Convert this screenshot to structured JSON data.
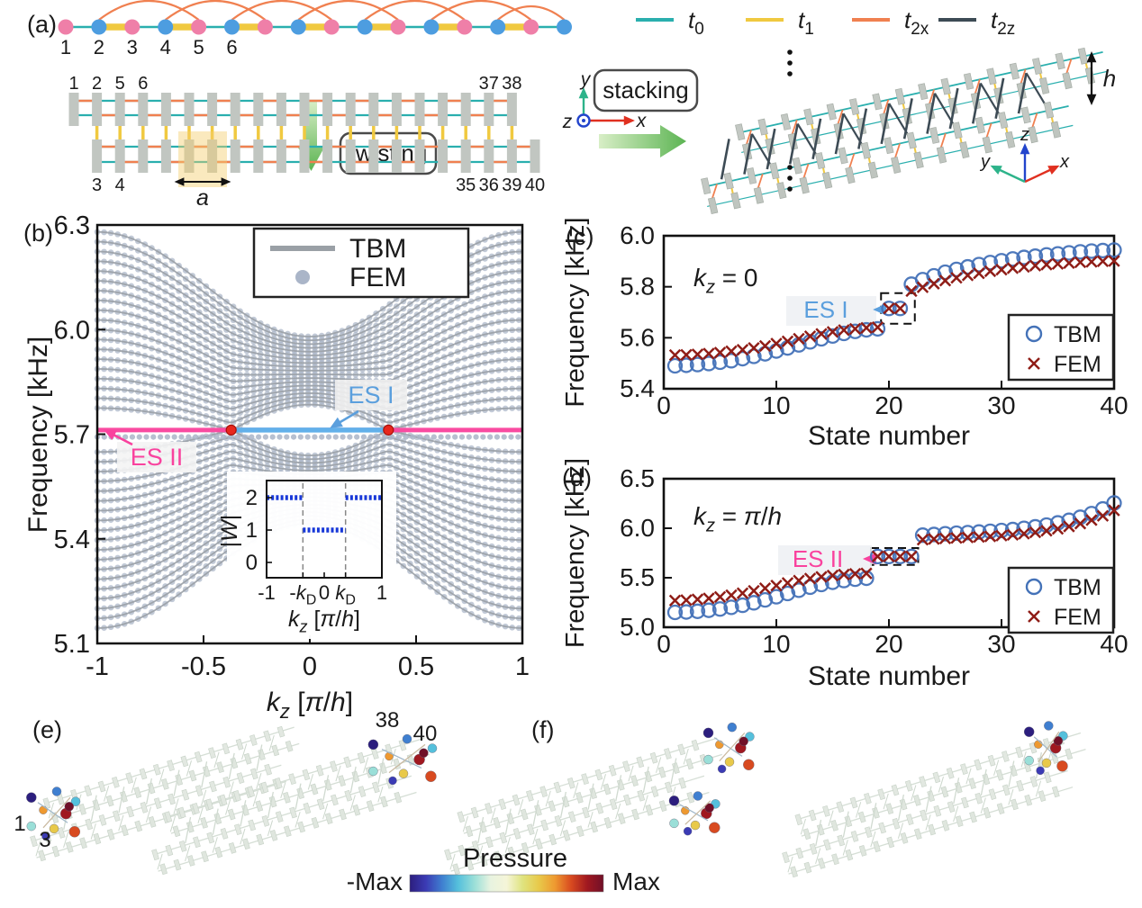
{
  "figure_labels": {
    "a": "(a)",
    "b": "(b)",
    "c": "(c)",
    "d": "(d)",
    "e": "(e)",
    "f": "(f)"
  },
  "panel_a": {
    "chain": {
      "n_sites": 16,
      "site_labels": [
        "1",
        "2",
        "3",
        "4",
        "5",
        "6"
      ],
      "site_color_a": "#ef7fa8",
      "site_color_b": "#4d9de0",
      "bond_color_t0": "#2aafae",
      "bond_color_t1": "#f0c940",
      "arc_color": "#f08050"
    },
    "twisting_label": "twisting",
    "stacking_label": "stacking",
    "lattice": {
      "n_cols": 20,
      "top_left_labels": [
        "1",
        "2",
        "5",
        "6"
      ],
      "top_right_labels": [
        "37",
        "38"
      ],
      "bottom_left_labels": [
        "3",
        "4"
      ],
      "bottom_right_labels": [
        "35",
        "36",
        "39",
        "40"
      ],
      "unit_cell_label": "a",
      "bar_color": "#c1c6c1"
    },
    "legend": [
      {
        "pieces": [
          [
            "t",
            1,
            0
          ],
          [
            "0",
            0,
            1
          ]
        ],
        "color": "#2aafae"
      },
      {
        "pieces": [
          [
            "t",
            1,
            0
          ],
          [
            "1",
            0,
            1
          ]
        ],
        "color": "#f0c940"
      },
      {
        "pieces": [
          [
            "t",
            1,
            0
          ],
          [
            "2x",
            0,
            1
          ]
        ],
        "color": "#f08050"
      },
      {
        "pieces": [
          [
            "t",
            1,
            0
          ],
          [
            "2z",
            0,
            1
          ]
        ],
        "color": "#3d4b55"
      }
    ],
    "axes2d": {
      "up": "y",
      "right": "x",
      "out": "z",
      "up_color": "#2db38a",
      "right_color": "#e03020",
      "out_color": "#2244cc"
    },
    "axes3d": {
      "up": "z",
      "right": "x",
      "left": "y",
      "up_color": "#2244cc",
      "right_color": "#e03020",
      "left_color": "#2db38a"
    },
    "height_label": "h"
  },
  "chart_data": [
    {
      "id": "b",
      "type": "line",
      "xlabel": "k_z [pi/h]",
      "xlabel_pieces": [
        [
          "k",
          1,
          0
        ],
        [
          "z",
          1,
          1
        ],
        [
          "  [",
          0,
          0
        ],
        [
          "π",
          1,
          0
        ],
        [
          "/",
          0,
          0
        ],
        [
          "h",
          1,
          0
        ],
        [
          "]",
          0,
          0
        ]
      ],
      "ylabel": "Frequency [kHz]",
      "xlim": [
        -1,
        1
      ],
      "ylim": [
        5.1,
        6.3
      ],
      "xticks": [
        -1,
        -0.5,
        0,
        0.5,
        1
      ],
      "yticks": [
        5.1,
        5.4,
        5.7,
        6.0,
        6.3
      ],
      "legend": [
        {
          "label": "TBM",
          "marker": "line",
          "color": "#9aa0a6"
        },
        {
          "label": "FEM",
          "marker": "dot",
          "color": "#aab5c8"
        }
      ],
      "bands": {
        "n_per_group": 19,
        "dirac_k": 0.37,
        "upper_envelope": {
          "top_zone_edge": 6.28,
          "top_center": 5.98,
          "bottom_center": 5.785,
          "bottom_dirac": 5.712,
          "bottom_zone_edge": 5.775
        },
        "lower_envelope": {
          "bottom_zone_edge": 5.144,
          "bottom_center": 5.444,
          "top_center": 5.639,
          "top_dirac": 5.712,
          "top_zone_edge": 5.649
        }
      },
      "edge_states": [
        {
          "label": "ES I",
          "f": 5.712,
          "k_range": [
            -0.37,
            0.37
          ],
          "color": "#62b0ea",
          "label_color": "#5b9fdd"
        },
        {
          "label": "ES II",
          "f": 5.712,
          "k_range": [
            -1,
            1
          ],
          "color": "#f94ba1",
          "label_color": "#f9429e"
        }
      ],
      "fem_edge_row_f": 5.692,
      "dirac_points": {
        "k": [
          -0.37,
          0.37
        ],
        "f": 5.712,
        "color": "#e8281e"
      }
    },
    {
      "id": "b_inset",
      "type": "line",
      "xlabel_pieces": [
        [
          "k",
          1,
          0
        ],
        [
          "z",
          1,
          1
        ],
        [
          "  [",
          0,
          0
        ],
        [
          "π",
          1,
          0
        ],
        [
          "/",
          0,
          0
        ],
        [
          "h",
          1,
          0
        ],
        [
          "]",
          0,
          0
        ]
      ],
      "ylabel_pieces": [
        [
          "|",
          0,
          0
        ],
        [
          "W",
          1,
          0
        ],
        [
          "|",
          0,
          0
        ]
      ],
      "xlim": [
        -1,
        1
      ],
      "ylim": [
        0,
        2.3
      ],
      "yticks": [
        0,
        1,
        2
      ],
      "xtick_positions": [
        -1,
        -0.37,
        0,
        0.37,
        1
      ],
      "xtick_pieces": [
        [
          [
            "-1",
            0,
            0
          ]
        ],
        [
          [
            "-",
            0,
            0
          ],
          [
            "k",
            1,
            0
          ],
          [
            "D",
            0,
            1
          ]
        ],
        [
          [
            "0",
            0,
            0
          ]
        ],
        [
          [
            "k",
            1,
            0
          ],
          [
            "D",
            0,
            1
          ]
        ],
        [
          [
            "1",
            0,
            0
          ]
        ]
      ],
      "segments": [
        {
          "x0": -1,
          "x1": -0.37,
          "w": 2
        },
        {
          "x0": -0.37,
          "x1": 0.37,
          "w": 1
        },
        {
          "x0": 0.37,
          "x1": 1,
          "w": 2
        }
      ],
      "dashed_x": [
        -0.37,
        0.37
      ],
      "color": "#1838d8"
    },
    {
      "id": "c",
      "type": "scatter",
      "annotation": "k_z = 0",
      "annotation_pieces": [
        [
          "k",
          1,
          0
        ],
        [
          "z",
          1,
          1
        ],
        [
          " = 0",
          0,
          0
        ]
      ],
      "xlabel": "State number",
      "ylabel": "Frequency [kHz]",
      "xlim": [
        0,
        40
      ],
      "ylim": [
        5.4,
        6.0
      ],
      "xticks": [
        0,
        10,
        20,
        30,
        40
      ],
      "yticks": [
        5.4,
        5.6,
        5.8,
        6.0
      ],
      "x_start": 1,
      "highlight": {
        "label": "ES I",
        "color": "#5b9fdd",
        "box_states": [
          19.3,
          22.3
        ],
        "box_freq": [
          5.655,
          5.775
        ]
      },
      "series": [
        {
          "name": "TBM",
          "marker": "circle",
          "color": "#4472b8",
          "y": [
            5.49,
            5.492,
            5.495,
            5.499,
            5.504,
            5.51,
            5.518,
            5.527,
            5.537,
            5.548,
            5.56,
            5.572,
            5.584,
            5.596,
            5.607,
            5.617,
            5.625,
            5.631,
            5.635,
            5.715,
            5.715,
            5.81,
            5.828,
            5.843,
            5.857,
            5.868,
            5.878,
            5.887,
            5.895,
            5.902,
            5.909,
            5.915,
            5.92,
            5.925,
            5.929,
            5.933,
            5.937,
            5.94,
            5.942,
            5.944
          ]
        },
        {
          "name": "FEM",
          "marker": "cross",
          "color": "#8f1d17",
          "y": [
            5.532,
            5.533,
            5.535,
            5.538,
            5.542,
            5.547,
            5.553,
            5.56,
            5.568,
            5.577,
            5.586,
            5.596,
            5.606,
            5.615,
            5.623,
            5.63,
            5.635,
            5.639,
            5.641,
            5.715,
            5.715,
            5.783,
            5.798,
            5.812,
            5.824,
            5.835,
            5.845,
            5.853,
            5.861,
            5.867,
            5.873,
            5.878,
            5.883,
            5.887,
            5.89,
            5.893,
            5.896,
            5.898,
            5.9,
            5.901
          ]
        }
      ]
    },
    {
      "id": "d",
      "type": "scatter",
      "annotation": "k_z = pi/h",
      "annotation_pieces": [
        [
          "k",
          1,
          0
        ],
        [
          "z",
          1,
          1
        ],
        [
          " = ",
          0,
          0
        ],
        [
          "π",
          1,
          0
        ],
        [
          "/",
          0,
          0
        ],
        [
          "h",
          1,
          0
        ]
      ],
      "xlabel": "State number",
      "ylabel": "Frequency [kHz]",
      "xlim": [
        0,
        40
      ],
      "ylim": [
        5.0,
        6.5
      ],
      "xticks": [
        0,
        10,
        20,
        30,
        40
      ],
      "yticks": [
        5.0,
        5.5,
        6.0,
        6.5
      ],
      "x_start": 1,
      "highlight": {
        "label": "ES II",
        "color": "#f9429e",
        "box_states": [
          18.4,
          22.6
        ],
        "box_freq": [
          5.63,
          5.8
        ]
      },
      "series": [
        {
          "name": "TBM",
          "marker": "circle",
          "color": "#4472b8",
          "y": [
            5.15,
            5.154,
            5.161,
            5.171,
            5.184,
            5.201,
            5.222,
            5.247,
            5.276,
            5.308,
            5.341,
            5.374,
            5.405,
            5.432,
            5.454,
            5.472,
            5.485,
            5.495,
            5.715,
            5.715,
            5.715,
            5.715,
            5.93,
            5.937,
            5.944,
            5.95,
            5.956,
            5.962,
            5.969,
            5.977,
            5.987,
            5.999,
            6.014,
            6.032,
            6.054,
            6.08,
            6.111,
            6.148,
            6.195,
            6.255
          ]
        },
        {
          "name": "FEM",
          "marker": "cross",
          "color": "#8f1d17",
          "y": [
            5.27,
            5.274,
            5.281,
            5.292,
            5.306,
            5.323,
            5.344,
            5.368,
            5.394,
            5.421,
            5.447,
            5.471,
            5.492,
            5.509,
            5.522,
            5.532,
            5.539,
            5.544,
            5.715,
            5.715,
            5.715,
            5.715,
            5.885,
            5.891,
            5.897,
            5.902,
            5.907,
            5.912,
            5.918,
            5.925,
            5.934,
            5.945,
            5.958,
            5.974,
            5.994,
            6.018,
            6.047,
            6.082,
            6.125,
            6.18
          ]
        }
      ]
    }
  ],
  "panel_ef": {
    "pressure_label": "Pressure",
    "min_label": "-Max",
    "max_label": "Max",
    "site_labels": {
      "left_low": "1",
      "left_low2": "3",
      "right_top": "38",
      "right_top2": "40"
    },
    "colormap": [
      "#2c1e7e",
      "#3b3bb4",
      "#3f7fd0",
      "#55c0dc",
      "#9adfd8",
      "#e8f3e0",
      "#f5f5d8",
      "#dfe37e",
      "#e8c94a",
      "#ee9930",
      "#d84a20",
      "#a01820",
      "#701028"
    ]
  }
}
